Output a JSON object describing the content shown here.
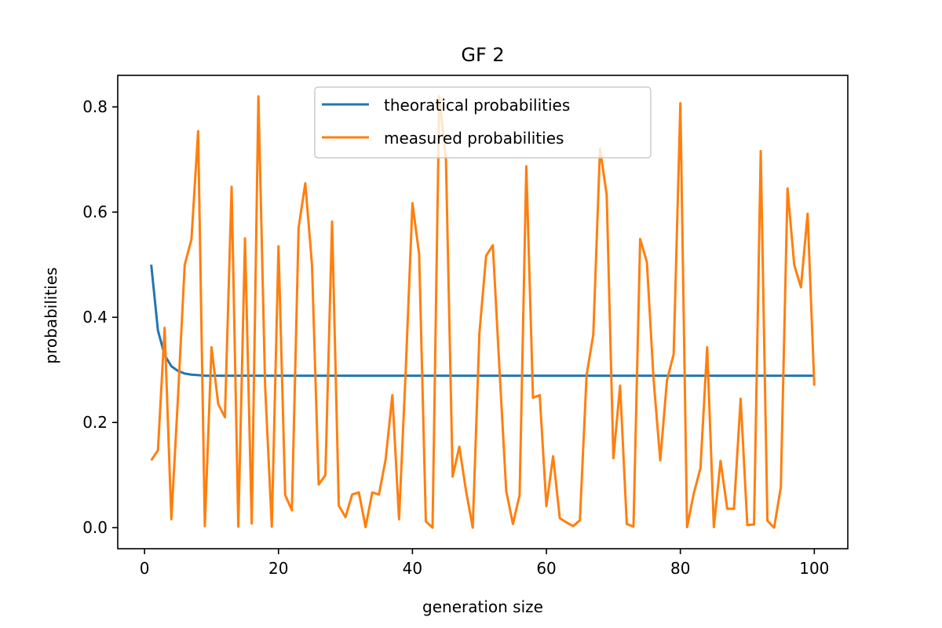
{
  "chart_data": {
    "type": "line",
    "title": "GF 2",
    "xlabel": "generation size",
    "ylabel": "probabilities",
    "xlim": [
      -4,
      105
    ],
    "ylim": [
      -0.04,
      0.86
    ],
    "xticks": [
      0,
      20,
      40,
      60,
      80,
      100
    ],
    "yticks": [
      0.0,
      0.2,
      0.4,
      0.6,
      0.8
    ],
    "xtick_labels": [
      "0",
      "20",
      "40",
      "60",
      "80",
      "100"
    ],
    "ytick_labels": [
      "0.0",
      "0.2",
      "0.4",
      "0.6",
      "0.8"
    ],
    "grid": false,
    "legend_position": "upper center",
    "x": [
      1,
      2,
      3,
      4,
      5,
      6,
      7,
      8,
      9,
      10,
      11,
      12,
      13,
      14,
      15,
      16,
      17,
      18,
      19,
      20,
      21,
      22,
      23,
      24,
      25,
      26,
      27,
      28,
      29,
      30,
      31,
      32,
      33,
      34,
      35,
      36,
      37,
      38,
      39,
      40,
      41,
      42,
      43,
      44,
      45,
      46,
      47,
      48,
      49,
      50,
      51,
      52,
      53,
      54,
      55,
      56,
      57,
      58,
      59,
      60,
      61,
      62,
      63,
      64,
      65,
      66,
      67,
      68,
      69,
      70,
      71,
      72,
      73,
      74,
      75,
      76,
      77,
      78,
      79,
      80,
      81,
      82,
      83,
      84,
      85,
      86,
      87,
      88,
      89,
      90,
      91,
      92,
      93,
      94,
      95,
      96,
      97,
      98,
      99,
      100
    ],
    "series": [
      {
        "name": "theoratical probabilities",
        "color": "#1f77b4",
        "values": [
          0.5,
          0.375,
          0.328,
          0.307,
          0.298,
          0.293,
          0.291,
          0.29,
          0.289,
          0.289,
          0.289,
          0.289,
          0.289,
          0.289,
          0.289,
          0.289,
          0.289,
          0.289,
          0.289,
          0.289,
          0.289,
          0.289,
          0.289,
          0.289,
          0.289,
          0.289,
          0.289,
          0.289,
          0.289,
          0.289,
          0.289,
          0.289,
          0.289,
          0.289,
          0.289,
          0.289,
          0.289,
          0.289,
          0.289,
          0.289,
          0.289,
          0.289,
          0.289,
          0.289,
          0.289,
          0.289,
          0.289,
          0.289,
          0.289,
          0.289,
          0.289,
          0.289,
          0.289,
          0.289,
          0.289,
          0.289,
          0.289,
          0.289,
          0.289,
          0.289,
          0.289,
          0.289,
          0.289,
          0.289,
          0.289,
          0.289,
          0.289,
          0.289,
          0.289,
          0.289,
          0.289,
          0.289,
          0.289,
          0.289,
          0.289,
          0.289,
          0.289,
          0.289,
          0.289,
          0.289,
          0.289,
          0.289,
          0.289,
          0.289,
          0.289,
          0.289,
          0.289,
          0.289,
          0.289,
          0.289,
          0.289,
          0.289,
          0.289,
          0.289,
          0.289,
          0.289,
          0.289,
          0.289,
          0.289,
          0.289
        ]
      },
      {
        "name": "measured probabilities",
        "color": "#ff7f0e",
        "values": [
          0.128,
          0.147,
          0.38,
          0.016,
          0.25,
          0.5,
          0.548,
          0.754,
          0.003,
          0.343,
          0.235,
          0.21,
          0.648,
          0.002,
          0.55,
          0.008,
          0.82,
          0.27,
          0.002,
          0.535,
          0.062,
          0.033,
          0.57,
          0.655,
          0.5,
          0.082,
          0.1,
          0.582,
          0.042,
          0.02,
          0.063,
          0.067,
          0.001,
          0.067,
          0.063,
          0.13,
          0.252,
          0.016,
          0.3,
          0.617,
          0.52,
          0.012,
          0.0,
          0.82,
          0.7,
          0.097,
          0.154,
          0.07,
          0.0,
          0.37,
          0.517,
          0.537,
          0.3,
          0.07,
          0.007,
          0.062,
          0.687,
          0.247,
          0.252,
          0.041,
          0.136,
          0.018,
          0.01,
          0.003,
          0.014,
          0.29,
          0.367,
          0.72,
          0.633,
          0.132,
          0.27,
          0.007,
          0.002,
          0.549,
          0.505,
          0.282,
          0.128,
          0.28,
          0.33,
          0.807,
          0.001,
          0.065,
          0.113,
          0.343,
          0.001,
          0.127,
          0.036,
          0.036,
          0.245,
          0.005,
          0.006,
          0.716,
          0.013,
          0.0,
          0.077,
          0.645,
          0.5,
          0.457,
          0.597,
          0.27
        ]
      }
    ]
  }
}
